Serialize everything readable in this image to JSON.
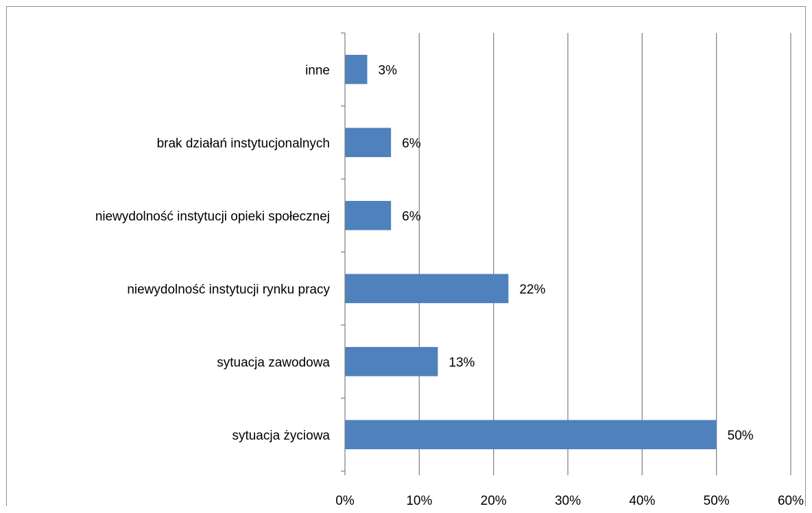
{
  "chart_data": {
    "type": "bar",
    "orientation": "horizontal",
    "categories": [
      "sytuacja życiowa",
      "sytuacja zawodowa",
      "niewydolność instytucji rynku pracy",
      "niewydolność instytucji opieki społecznej",
      "brak  działań instytucjonalnych",
      "inne"
    ],
    "values": [
      50,
      12.5,
      22,
      6.2,
      6.2,
      3
    ],
    "data_labels": [
      "50%",
      "13%",
      "22%",
      "6%",
      "6%",
      "3%"
    ],
    "xlim": [
      0,
      60
    ],
    "x_ticks": [
      0,
      10,
      20,
      30,
      40,
      50,
      60
    ],
    "x_tick_labels": [
      "0%",
      "10%",
      "20%",
      "30%",
      "40%",
      "50%",
      "60%"
    ],
    "title": "",
    "xlabel": "",
    "ylabel": "",
    "grid": "vertical",
    "legend": "none",
    "bar_color": "#4f81bd",
    "grid_color": "#868686"
  }
}
